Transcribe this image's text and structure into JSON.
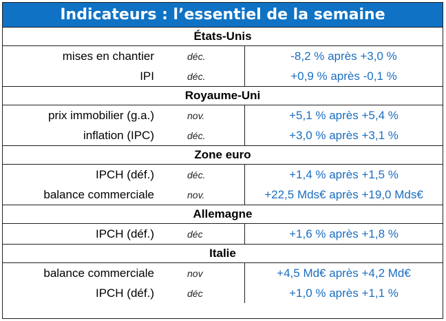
{
  "title": "Indicateurs : l’essentiel de la semaine",
  "colors": {
    "header_bg": "#0f72c4",
    "value_text": "#1a6ec0"
  },
  "sections": [
    {
      "name": "États-Unis",
      "rows": [
        {
          "label": "mises en chantier",
          "period": "déc.",
          "value": "-8,2 % après +3,0 %"
        },
        {
          "label": "IPI",
          "period": "déc.",
          "value": "+0,9 % après -0,1 %"
        }
      ]
    },
    {
      "name": "Royaume-Uni",
      "rows": [
        {
          "label": "prix immobilier (g.a.)",
          "period": "nov.",
          "value": "+5,1 % après +5,4 %"
        },
        {
          "label": "inflation (IPC)",
          "period": "déc.",
          "value": "+3,0 % après +3,1 %"
        }
      ]
    },
    {
      "name": "Zone euro",
      "rows": [
        {
          "label": "IPCH (déf.)",
          "period": "déc.",
          "value": "+1,4 % après +1,5 %"
        },
        {
          "label": "balance commerciale",
          "period": "nov.",
          "value": "+22,5 Mds€ après +19,0 Mds€"
        }
      ]
    },
    {
      "name": "Allemagne",
      "rows": [
        {
          "label": "IPCH (déf.)",
          "period": "déc",
          "value": "+1,6 % après +1,8 %"
        }
      ]
    },
    {
      "name": "Italie",
      "rows": [
        {
          "label": "balance commerciale",
          "period": "nov",
          "value": "+4,5 Md€ après +4,2 Md€"
        },
        {
          "label": "IPCH (déf.)",
          "period": "déc",
          "value": "+1,0 % après +1,1 %"
        }
      ]
    }
  ]
}
